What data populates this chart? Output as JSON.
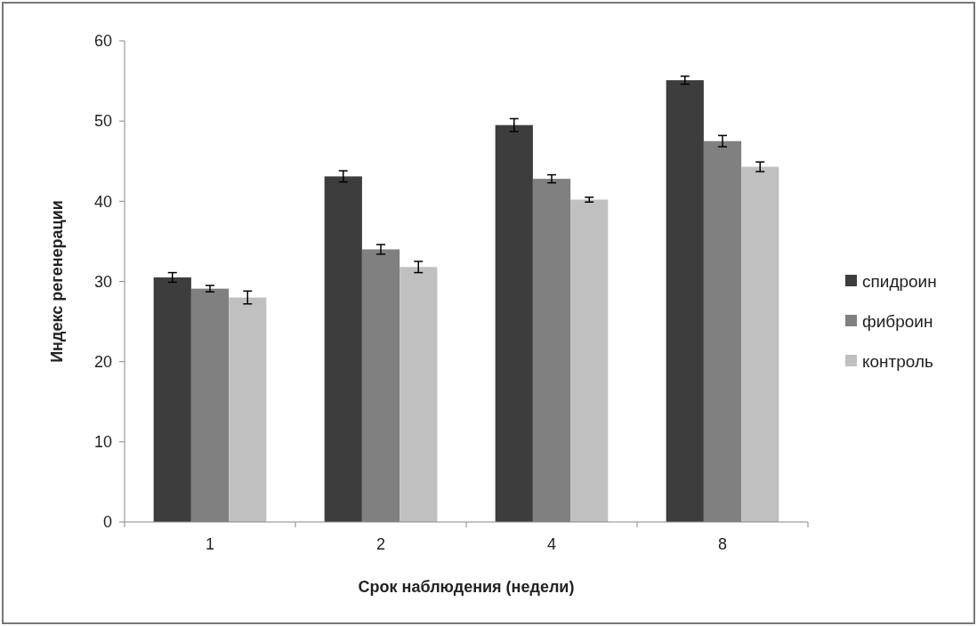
{
  "chart_data": {
    "type": "bar",
    "xlabel": "Срок наблюдения (недели)",
    "ylabel": "Индекс регенерации",
    "categories": [
      "1",
      "2",
      "4",
      "8"
    ],
    "series": [
      {
        "name": "спидроин",
        "color": "#3d3d3d",
        "values": [
          30.5,
          43.1,
          49.5,
          55.1
        ],
        "errors": [
          0.6,
          0.7,
          0.8,
          0.5
        ]
      },
      {
        "name": "фиброин",
        "color": "#808080",
        "values": [
          29.1,
          34.0,
          42.8,
          47.5
        ],
        "errors": [
          0.4,
          0.6,
          0.5,
          0.7
        ]
      },
      {
        "name": "контроль",
        "color": "#c0c0c0",
        "values": [
          28.0,
          31.8,
          40.2,
          44.3
        ],
        "errors": [
          0.8,
          0.7,
          0.3,
          0.6
        ]
      }
    ],
    "ylim": [
      0,
      60
    ],
    "yticks": [
      0,
      10,
      20,
      30,
      40,
      50,
      60
    ],
    "grid": false,
    "legend": "right"
  }
}
